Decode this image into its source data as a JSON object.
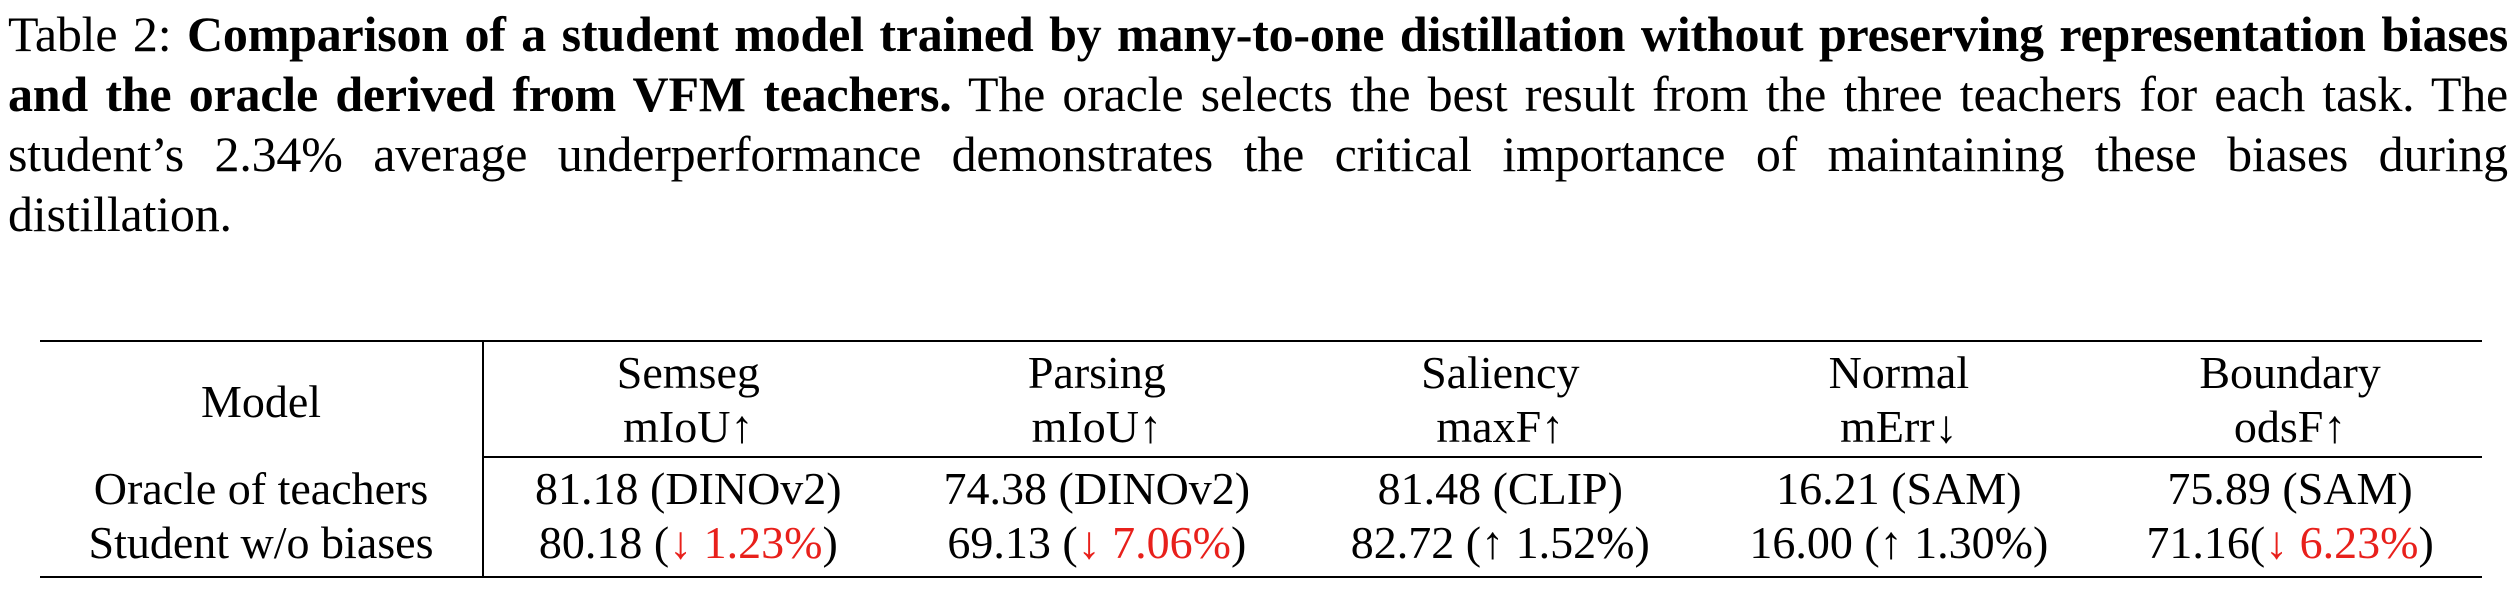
{
  "caption": {
    "label": "Table 2:",
    "bold": "Comparison of a student model trained by many-to-one distillation without preserving representation biases and the oracle derived from VFM teachers.",
    "rest": "The oracle selects the best result from the three teachers for each task. The student’s 2.34% average underperformance demonstrates the critical importance of maintaining these biases during distillation."
  },
  "table": {
    "model_header": "Model",
    "columns": [
      {
        "task": "Semseg",
        "metric": "mIoU↑"
      },
      {
        "task": "Parsing",
        "metric": "mIoU↑"
      },
      {
        "task": "Saliency",
        "metric": "maxF↑"
      },
      {
        "task": "Normal",
        "metric": "mErr↓"
      },
      {
        "task": "Boundary",
        "metric": "odsF↑"
      }
    ],
    "rows": [
      {
        "model": "Oracle of teachers",
        "cells": [
          {
            "value": "81.18",
            "note": "(DINOv2)"
          },
          {
            "value": "74.38",
            "note": "(DINOv2)"
          },
          {
            "value": "81.48",
            "note": "(CLIP)"
          },
          {
            "value": "16.21",
            "note": "(SAM)"
          },
          {
            "value": "75.89",
            "note": "(SAM)"
          }
        ]
      },
      {
        "model": "Student w/o biases",
        "cells": [
          {
            "value": "80.18",
            "open": " (",
            "delta": "↓ 1.23%",
            "close": ")",
            "delta_negative": true
          },
          {
            "value": "69.13",
            "open": " (",
            "delta": "↓ 7.06%",
            "close": ")",
            "delta_negative": true
          },
          {
            "value": "82.72",
            "open": " (",
            "delta": "↑ 1.52%",
            "close": ")",
            "delta_negative": false
          },
          {
            "value": "16.00",
            "open": " (",
            "delta": "↑ 1.30%",
            "close": ")",
            "delta_negative": false
          },
          {
            "value": "71.16",
            "open": "(",
            "delta": "↓ 6.23%",
            "close": ")",
            "delta_negative": true
          }
        ]
      }
    ],
    "negative_color": "#e8201b"
  }
}
